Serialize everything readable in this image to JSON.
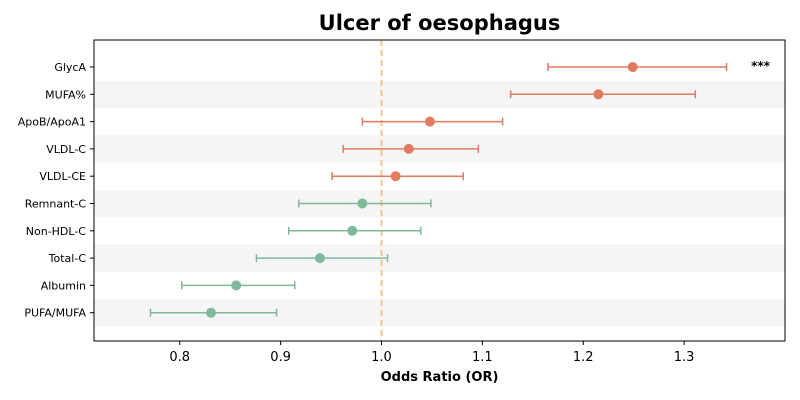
{
  "chart_data": {
    "type": "forest",
    "title": "Ulcer of oesophagus",
    "xlabel": "Odds Ratio (OR)",
    "ylabel": "",
    "xlim": [
      0.715,
      1.4
    ],
    "xticks": [
      "0.8",
      "0.9",
      "1.0",
      "1.1",
      "1.2",
      "1.3"
    ],
    "reference_line": 1.0,
    "grid": false,
    "colors": {
      "positive": "#e07b5f",
      "negative": "#80b89a",
      "reference": "#f4c27f",
      "band": "#f5f5f5"
    },
    "rows": [
      {
        "name": "GlycA",
        "or": 1.249,
        "lo": 1.165,
        "hi": 1.342,
        "annotation": "***"
      },
      {
        "name": "MUFA%",
        "or": 1.215,
        "lo": 1.128,
        "hi": 1.311,
        "annotation": ""
      },
      {
        "name": "ApoB/ApoA1",
        "or": 1.048,
        "lo": 0.981,
        "hi": 1.12,
        "annotation": ""
      },
      {
        "name": "VLDL-C",
        "or": 1.027,
        "lo": 0.962,
        "hi": 1.096,
        "annotation": ""
      },
      {
        "name": "VLDL-CE",
        "or": 1.014,
        "lo": 0.951,
        "hi": 1.081,
        "annotation": ""
      },
      {
        "name": "Remnant-C",
        "or": 0.981,
        "lo": 0.918,
        "hi": 1.049,
        "annotation": ""
      },
      {
        "name": "Non-HDL-C",
        "or": 0.971,
        "lo": 0.908,
        "hi": 1.039,
        "annotation": ""
      },
      {
        "name": "Total-C",
        "or": 0.939,
        "lo": 0.876,
        "hi": 1.006,
        "annotation": ""
      },
      {
        "name": "Albumin",
        "or": 0.856,
        "lo": 0.802,
        "hi": 0.914,
        "annotation": ""
      },
      {
        "name": "PUFA/MUFA",
        "or": 0.831,
        "lo": 0.771,
        "hi": 0.896,
        "annotation": ""
      }
    ]
  }
}
